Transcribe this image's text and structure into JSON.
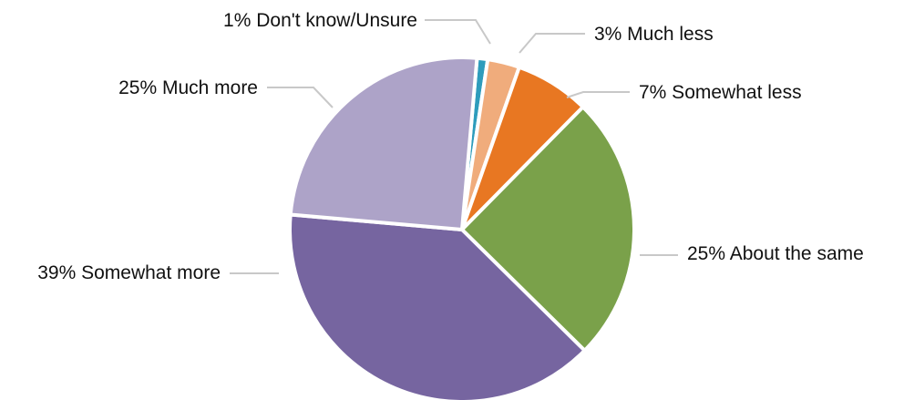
{
  "chart_data": {
    "type": "pie",
    "title": "",
    "start_angle_deg": 5,
    "direction": "clockwise",
    "slices": [
      {
        "label": "1% Don't know/Unsure",
        "value": 1,
        "color": "#2e9cbc"
      },
      {
        "label": "3% Much less",
        "value": 3,
        "color": "#f0ac7c"
      },
      {
        "label": "7% Somewhat less",
        "value": 7,
        "color": "#e87722"
      },
      {
        "label": "25% About the same",
        "value": 25,
        "color": "#7aa14a"
      },
      {
        "label": "39% Somewhat more",
        "value": 39,
        "color": "#7665a0"
      },
      {
        "label": "25% Much more",
        "value": 25,
        "color": "#ada3c8"
      }
    ]
  }
}
